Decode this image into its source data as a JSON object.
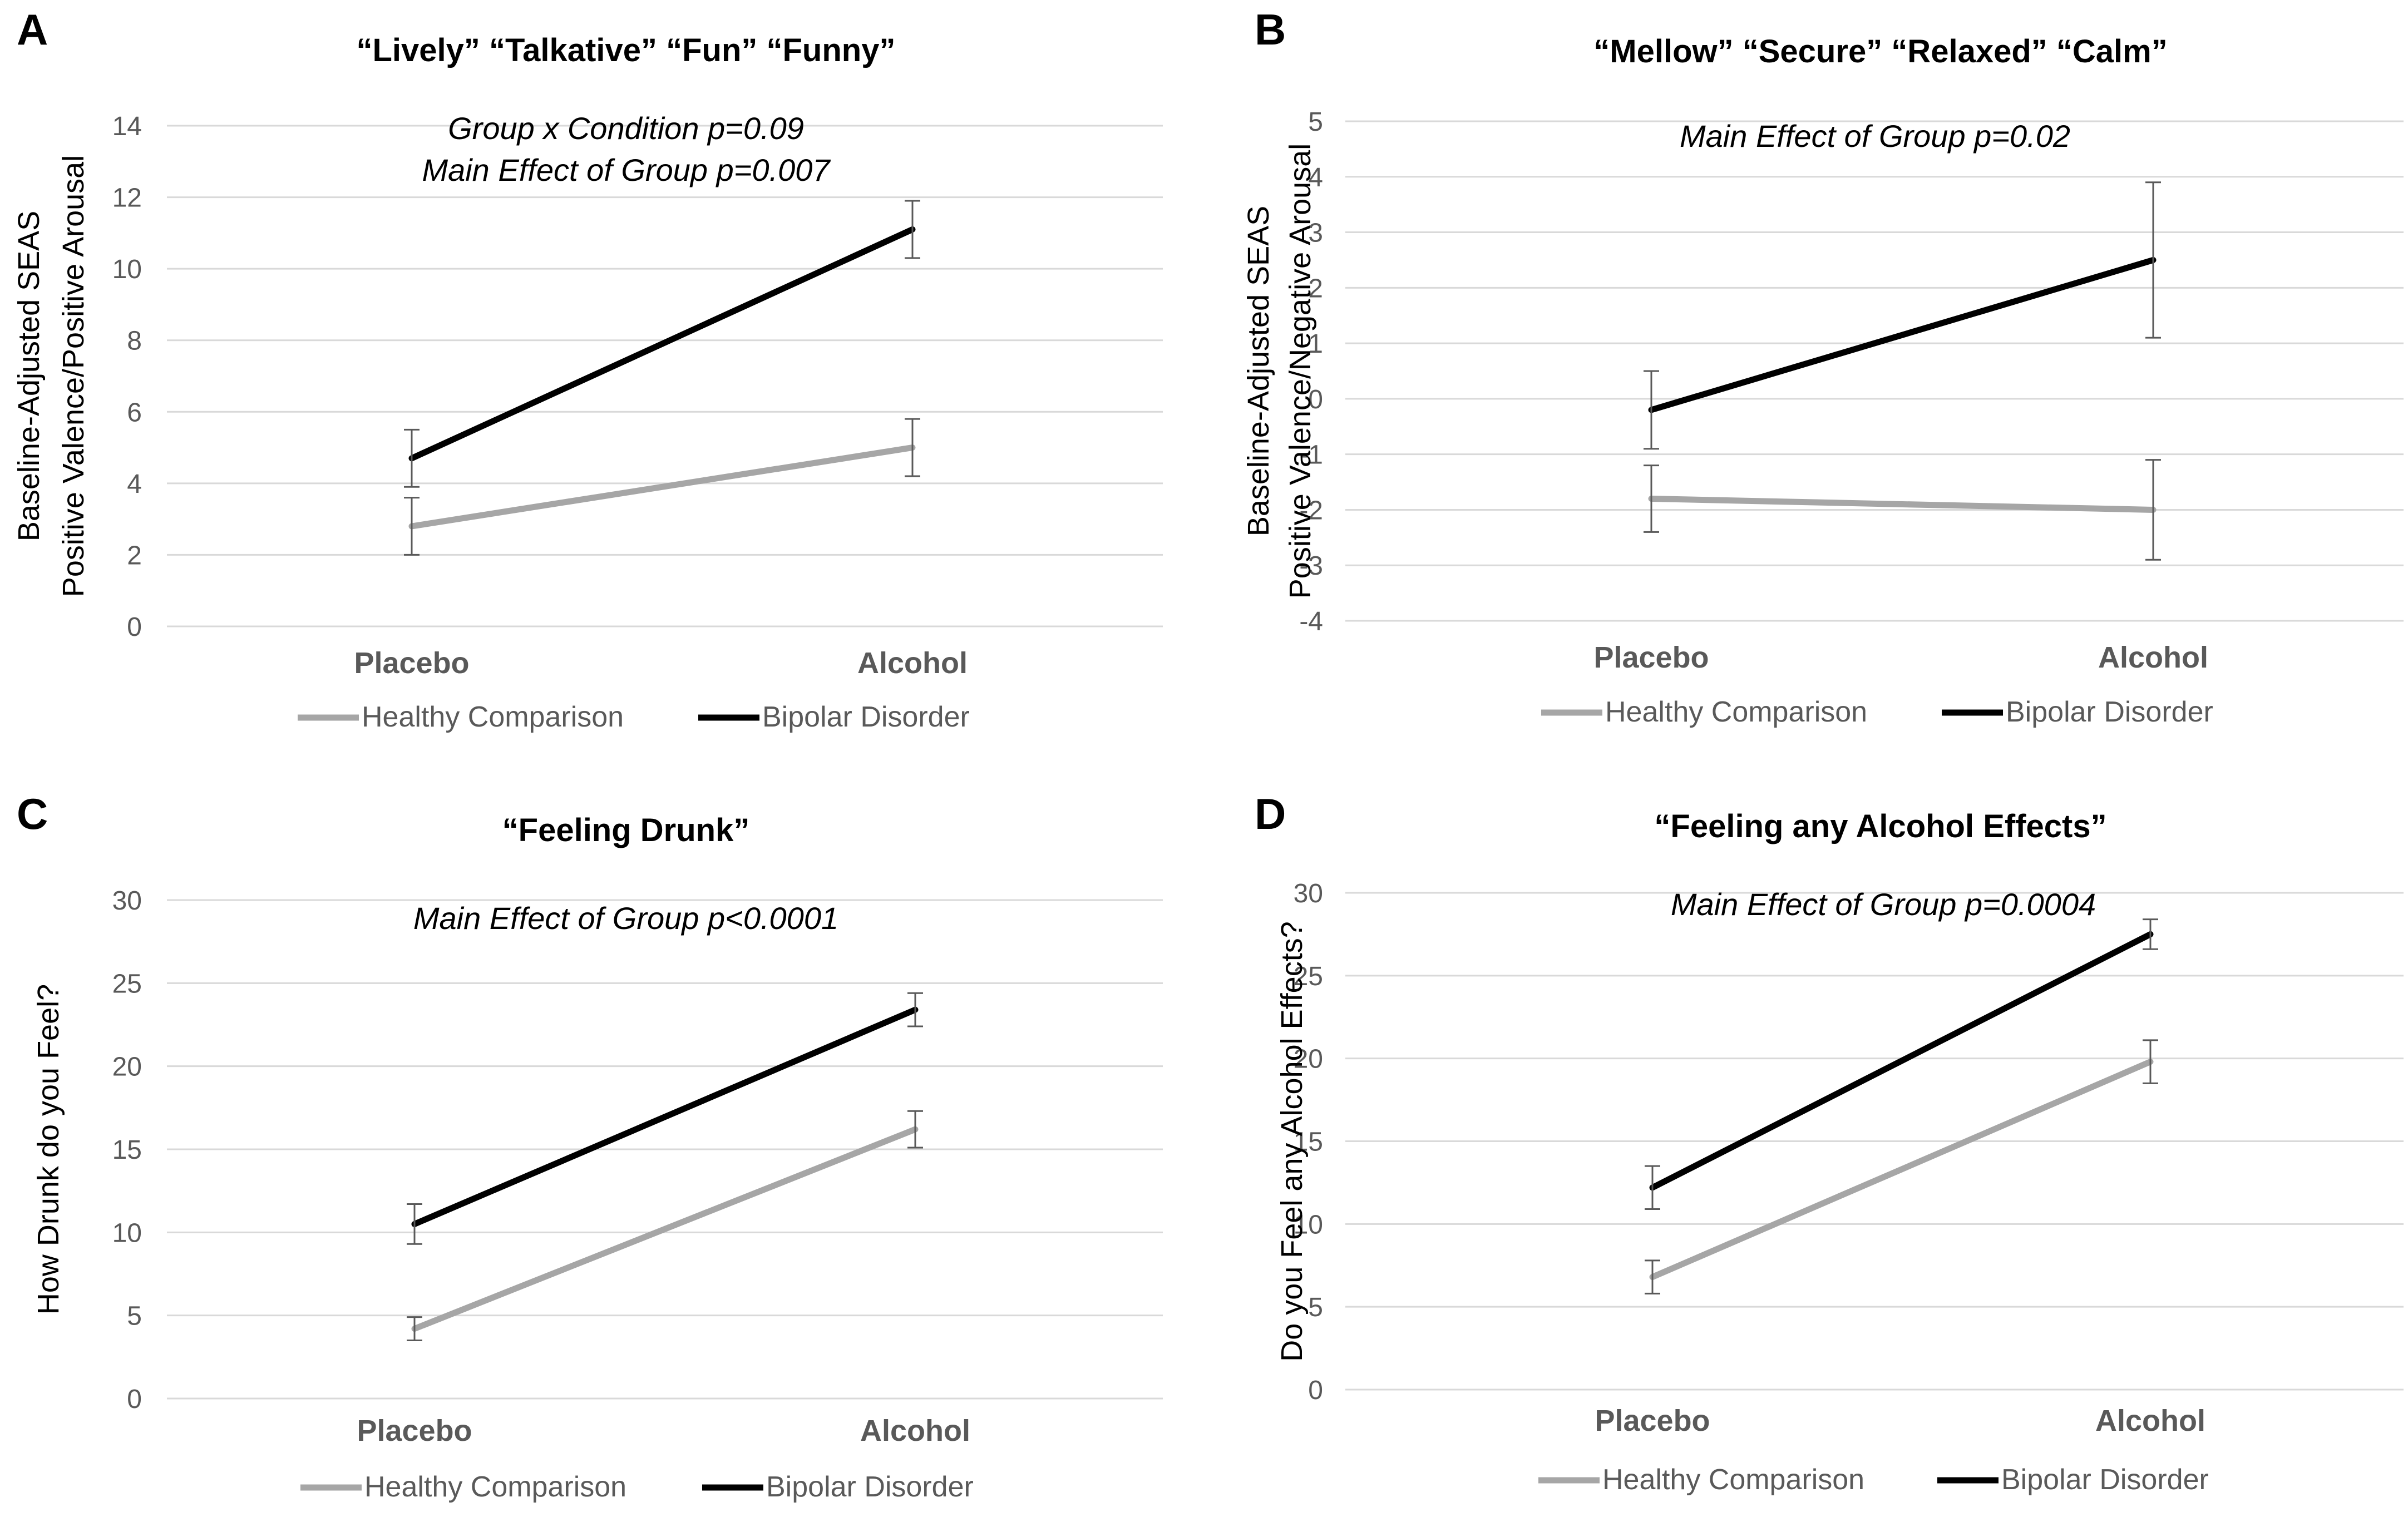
{
  "chart_data": [
    {
      "panel_letter": "A",
      "type": "line",
      "title": "“Lively” “Talkative” “Fun” “Funny”",
      "annotations": [
        "Group x Condition p=0.09",
        "Main Effect of Group p=0.007"
      ],
      "ylabel_lines": [
        "Baseline-Adjusted SEAS",
        "Positive Valence/Positive Arousal"
      ],
      "xlabel": "",
      "categories": [
        "Placebo",
        "Alcohol"
      ],
      "ylim": [
        0,
        14
      ],
      "yticks": [
        0,
        2,
        4,
        6,
        8,
        10,
        12,
        14
      ],
      "grid": true,
      "legend_position": "bottom",
      "series": [
        {
          "name": "Healthy Comparison",
          "color": "#a6a6a6",
          "values": [
            2.8,
            5.0
          ],
          "errors": [
            0.8,
            0.8
          ]
        },
        {
          "name": "Bipolar Disorder",
          "color": "#000000",
          "values": [
            4.7,
            11.1
          ],
          "errors": [
            0.8,
            0.8
          ]
        }
      ]
    },
    {
      "panel_letter": "B",
      "type": "line",
      "title": "“Mellow” “Secure” “Relaxed” “Calm”",
      "annotations": [
        "Main Effect of Group p=0.02"
      ],
      "ylabel_lines": [
        "Baseline-Adjusted SEAS",
        "Positive Valence/Negative Arousal"
      ],
      "xlabel": "",
      "categories": [
        "Placebo",
        "Alcohol"
      ],
      "ylim": [
        -4,
        5
      ],
      "yticks": [
        -4,
        -3,
        -2,
        -1,
        0,
        1,
        2,
        3,
        4,
        5
      ],
      "grid": true,
      "legend_position": "bottom",
      "series": [
        {
          "name": "Healthy Comparison",
          "color": "#a6a6a6",
          "values": [
            -1.8,
            -2.0
          ],
          "errors": [
            0.6,
            0.9
          ]
        },
        {
          "name": "Bipolar Disorder",
          "color": "#000000",
          "values": [
            -0.2,
            2.5
          ],
          "errors": [
            0.7,
            1.4
          ]
        }
      ]
    },
    {
      "panel_letter": "C",
      "type": "line",
      "title": "“Feeling Drunk”",
      "annotations": [
        "Main Effect of Group p<0.0001"
      ],
      "ylabel_lines": [
        "How Drunk do you Feel?"
      ],
      "xlabel": "",
      "categories": [
        "Placebo",
        "Alcohol"
      ],
      "ylim": [
        0,
        30
      ],
      "yticks": [
        0,
        5,
        10,
        15,
        20,
        25,
        30
      ],
      "grid": true,
      "legend_position": "bottom",
      "series": [
        {
          "name": "Healthy Comparison",
          "color": "#a6a6a6",
          "values": [
            4.2,
            16.2
          ],
          "errors": [
            0.7,
            1.1
          ]
        },
        {
          "name": "Bipolar Disorder",
          "color": "#000000",
          "values": [
            10.5,
            23.4
          ],
          "errors": [
            1.2,
            1.0
          ]
        }
      ]
    },
    {
      "panel_letter": "D",
      "type": "line",
      "title": "“Feeling any Alcohol Effects”",
      "annotations": [
        "Main Effect of Group p=0.0004"
      ],
      "ylabel_lines": [
        "Do you Feel any Alcohol Effects?"
      ],
      "xlabel": "",
      "categories": [
        "Placebo",
        "Alcohol"
      ],
      "ylim": [
        0,
        30
      ],
      "yticks": [
        0,
        5,
        10,
        15,
        20,
        25,
        30
      ],
      "grid": true,
      "legend_position": "bottom",
      "series": [
        {
          "name": "Healthy Comparison",
          "color": "#a6a6a6",
          "values": [
            6.8,
            19.8
          ],
          "errors": [
            1.0,
            1.3
          ]
        },
        {
          "name": "Bipolar Disorder",
          "color": "#000000",
          "values": [
            12.2,
            27.5
          ],
          "errors": [
            1.3,
            0.9
          ]
        }
      ]
    }
  ]
}
